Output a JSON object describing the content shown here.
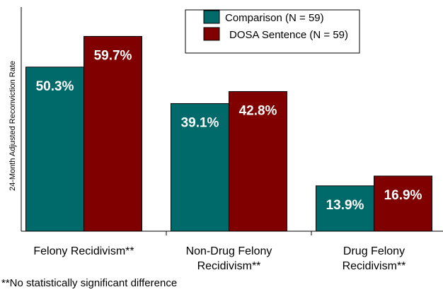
{
  "chart_data": {
    "type": "bar",
    "y_label": "24-Month Adjusted Reconviction Rate",
    "categories": [
      "Felony Recidivism**",
      "Non-Drug Felony Recidivism**",
      "Drug Felony Recidivism**"
    ],
    "series": [
      {
        "name": "Comparison (N = 59)",
        "color": "#006a6a",
        "values": [
          50.3,
          39.1,
          13.9
        ],
        "value_labels": [
          "50.3%",
          "39.1%",
          "13.9%"
        ]
      },
      {
        "name": "DOSA Sentence (N = 59)",
        "color": "#800000",
        "values": [
          59.7,
          42.8,
          16.9
        ],
        "value_labels": [
          "59.7%",
          "42.8%",
          "16.9%"
        ]
      }
    ],
    "ylim": [
      0,
      65
    ],
    "note": "**No statistically significant difference"
  }
}
